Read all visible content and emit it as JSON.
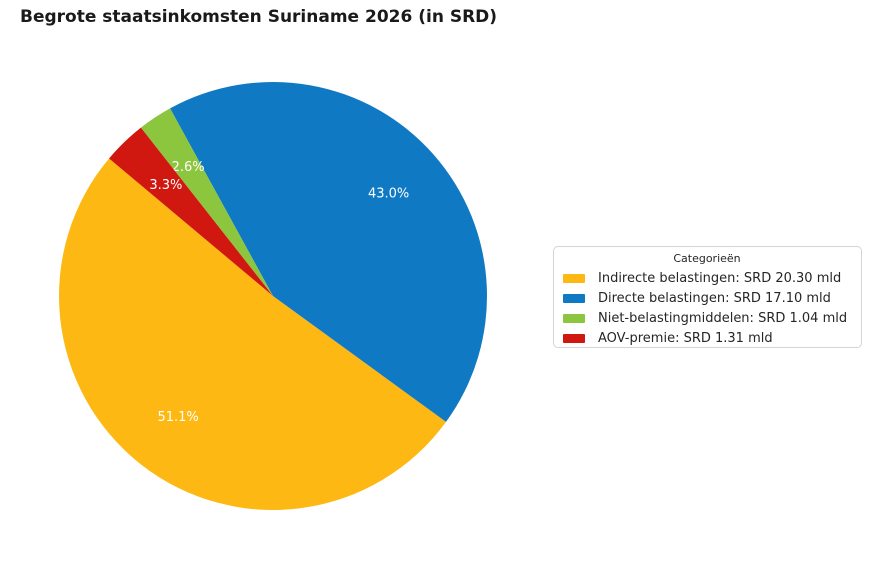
{
  "chart_data": {
    "type": "pie",
    "title": "Begrote staatsinkomsten Suriname 2026 (in SRD)",
    "legend_title": "Categorieën",
    "legend_position": "center-right",
    "start_angle_deg": 140,
    "direction": "counterclockwise",
    "pct_label_distance": 0.72,
    "pct_label_color": "#ffffff",
    "slices": [
      {
        "id": "indirecte-belastingen",
        "label": "Indirecte belastingen",
        "value_srd_mld": 20.3,
        "pct": 51.1,
        "pct_label": "51.1%",
        "legend_label": "Indirecte belastingen: SRD 20.30 mld",
        "color": "#fdb813"
      },
      {
        "id": "directe-belastingen",
        "label": "Directe belastingen",
        "value_srd_mld": 17.1,
        "pct": 43.0,
        "pct_label": "43.0%",
        "legend_label": "Directe belastingen: SRD 17.10 mld",
        "color": "#1079c4"
      },
      {
        "id": "niet-belastingmiddelen",
        "label": "Niet-belastingmiddelen",
        "value_srd_mld": 1.04,
        "pct": 2.6,
        "pct_label": "2.6%",
        "legend_label": "Niet-belastingmiddelen: SRD 1.04 mld",
        "color": "#8cc63f"
      },
      {
        "id": "aov-premie",
        "label": "AOV-premie",
        "value_srd_mld": 1.31,
        "pct": 3.3,
        "pct_label": "3.3%",
        "legend_label": "AOV-premie: SRD 1.31 mld",
        "color": "#d01810"
      }
    ]
  }
}
